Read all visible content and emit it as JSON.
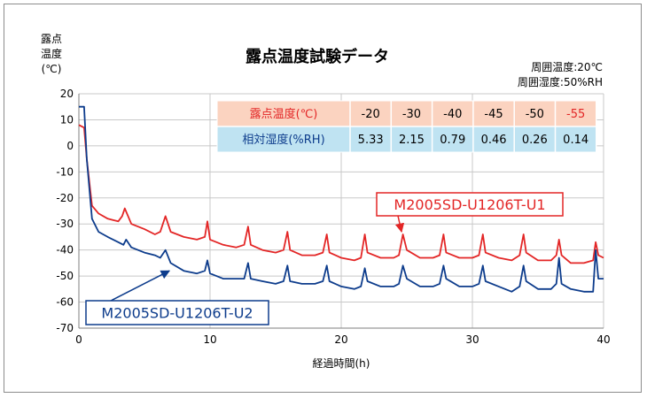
{
  "chart_data": {
    "type": "line",
    "title": "露点温度試験データ",
    "ylabel": [
      "露点",
      "温度",
      "(℃)"
    ],
    "xlabel": "経過時間(h)",
    "xlim": [
      0,
      40
    ],
    "ylim": [
      -70,
      20
    ],
    "xticks": [
      "0",
      "10",
      "20",
      "30",
      "40"
    ],
    "yticks": [
      "20",
      "10",
      "0",
      "-10",
      "-20",
      "-30",
      "-40",
      "-50",
      "-60",
      "-70"
    ],
    "conditions": [
      "周囲温度:20℃",
      "周囲湿度:50%RH"
    ],
    "colors": {
      "series1": "#e32626",
      "series2": "#0d3c8c"
    },
    "series": [
      {
        "name": "M2005SD-U1206T-U1",
        "color": "#e32626",
        "x": [
          0,
          0.4,
          0.6,
          1.0,
          1.5,
          2.2,
          3.0,
          3.3,
          3.5,
          4.0,
          5.0,
          5.8,
          6.2,
          6.6,
          7.0,
          8.0,
          9.0,
          9.6,
          9.8,
          10.0,
          11.0,
          12.0,
          12.6,
          12.9,
          13.1,
          14.0,
          15.0,
          15.6,
          15.9,
          16.1,
          17.0,
          18.0,
          18.6,
          18.9,
          19.1,
          20.0,
          21.0,
          21.5,
          21.8,
          22.0,
          23.0,
          24.0,
          24.4,
          24.7,
          25.0,
          26.0,
          27.0,
          27.5,
          27.8,
          28.0,
          29.0,
          30.0,
          30.5,
          30.8,
          31.0,
          32.0,
          33.0,
          33.6,
          33.9,
          34.1,
          35.0,
          36.0,
          36.4,
          36.6,
          36.8,
          37.5,
          38.5,
          39.2,
          39.4,
          39.6,
          40.0
        ],
        "y": [
          8,
          7,
          -5,
          -23,
          -26,
          -28,
          -29,
          -27,
          -24,
          -30,
          -32,
          -34,
          -33,
          -27,
          -33,
          -35,
          -36,
          -35,
          -29,
          -36,
          -38,
          -39,
          -38,
          -31,
          -38,
          -40,
          -41,
          -40,
          -33,
          -40,
          -42,
          -42,
          -41,
          -34,
          -41,
          -43,
          -44,
          -43,
          -34,
          -41,
          -43,
          -43,
          -42,
          -34,
          -40,
          -43,
          -43,
          -42,
          -34,
          -41,
          -43,
          -43,
          -42,
          -34,
          -41,
          -43,
          -44,
          -42,
          -34,
          -41,
          -44,
          -44,
          -42,
          -36,
          -42,
          -45,
          -45,
          -44,
          -37,
          -42,
          -43
        ]
      },
      {
        "name": "M2005SD-U1206T-U2",
        "color": "#0d3c8c",
        "x": [
          0,
          0.4,
          0.6,
          1.0,
          1.5,
          2.2,
          3.0,
          3.4,
          3.6,
          4.0,
          5.0,
          5.8,
          6.2,
          6.6,
          7.0,
          8.0,
          9.0,
          9.6,
          9.8,
          10.0,
          11.0,
          12.0,
          12.6,
          12.9,
          13.1,
          14.0,
          15.0,
          15.6,
          15.9,
          16.1,
          17.0,
          18.0,
          18.6,
          18.9,
          19.1,
          20.0,
          21.0,
          21.5,
          21.8,
          22.0,
          23.0,
          24.0,
          24.4,
          24.7,
          25.0,
          26.0,
          27.0,
          27.5,
          27.8,
          28.0,
          29.0,
          30.0,
          30.5,
          30.8,
          31.0,
          32.0,
          33.0,
          33.6,
          33.9,
          34.1,
          35.0,
          36.0,
          36.4,
          36.6,
          36.8,
          37.5,
          38.5,
          39.2,
          39.4,
          39.6,
          40.0
        ],
        "y": [
          15,
          15,
          -5,
          -28,
          -33,
          -35,
          -37,
          -38,
          -36,
          -39,
          -41,
          -42,
          -43,
          -40,
          -45,
          -48,
          -49,
          -48,
          -44,
          -49,
          -51,
          -51,
          -51,
          -45,
          -51,
          -52,
          -53,
          -52,
          -46,
          -52,
          -53,
          -53,
          -52,
          -46,
          -52,
          -54,
          -55,
          -54,
          -47,
          -52,
          -54,
          -54,
          -53,
          -46,
          -51,
          -54,
          -54,
          -53,
          -46,
          -51,
          -54,
          -54,
          -53,
          -46,
          -52,
          -54,
          -56,
          -54,
          -46,
          -52,
          -55,
          -55,
          -53,
          -43,
          -53,
          -55,
          -56,
          -56,
          -40,
          -51,
          -51
        ]
      }
    ],
    "annotations": [
      {
        "text": "M2005SD-U1206T-U1",
        "series": 0,
        "arrow_to": [
          24.6,
          -33
        ]
      },
      {
        "text": "M2005SD-U1206T-U2",
        "series": 1,
        "arrow_to": [
          6.9,
          -48
        ]
      }
    ],
    "table": {
      "row1_label": "露点温度(℃)",
      "row1_values": [
        "-20",
        "-30",
        "-40",
        "-45",
        "-50",
        "-55"
      ],
      "row2_label": "相対湿度(%RH)",
      "row2_values": [
        "5.33",
        "2.15",
        "0.79",
        "0.46",
        "0.26",
        "0.14"
      ],
      "header_bg": "#fbd3c0",
      "row2_bg": "#bfe3f2",
      "row1_color": "#e32626",
      "row2_color": "#0d3c8c"
    }
  }
}
